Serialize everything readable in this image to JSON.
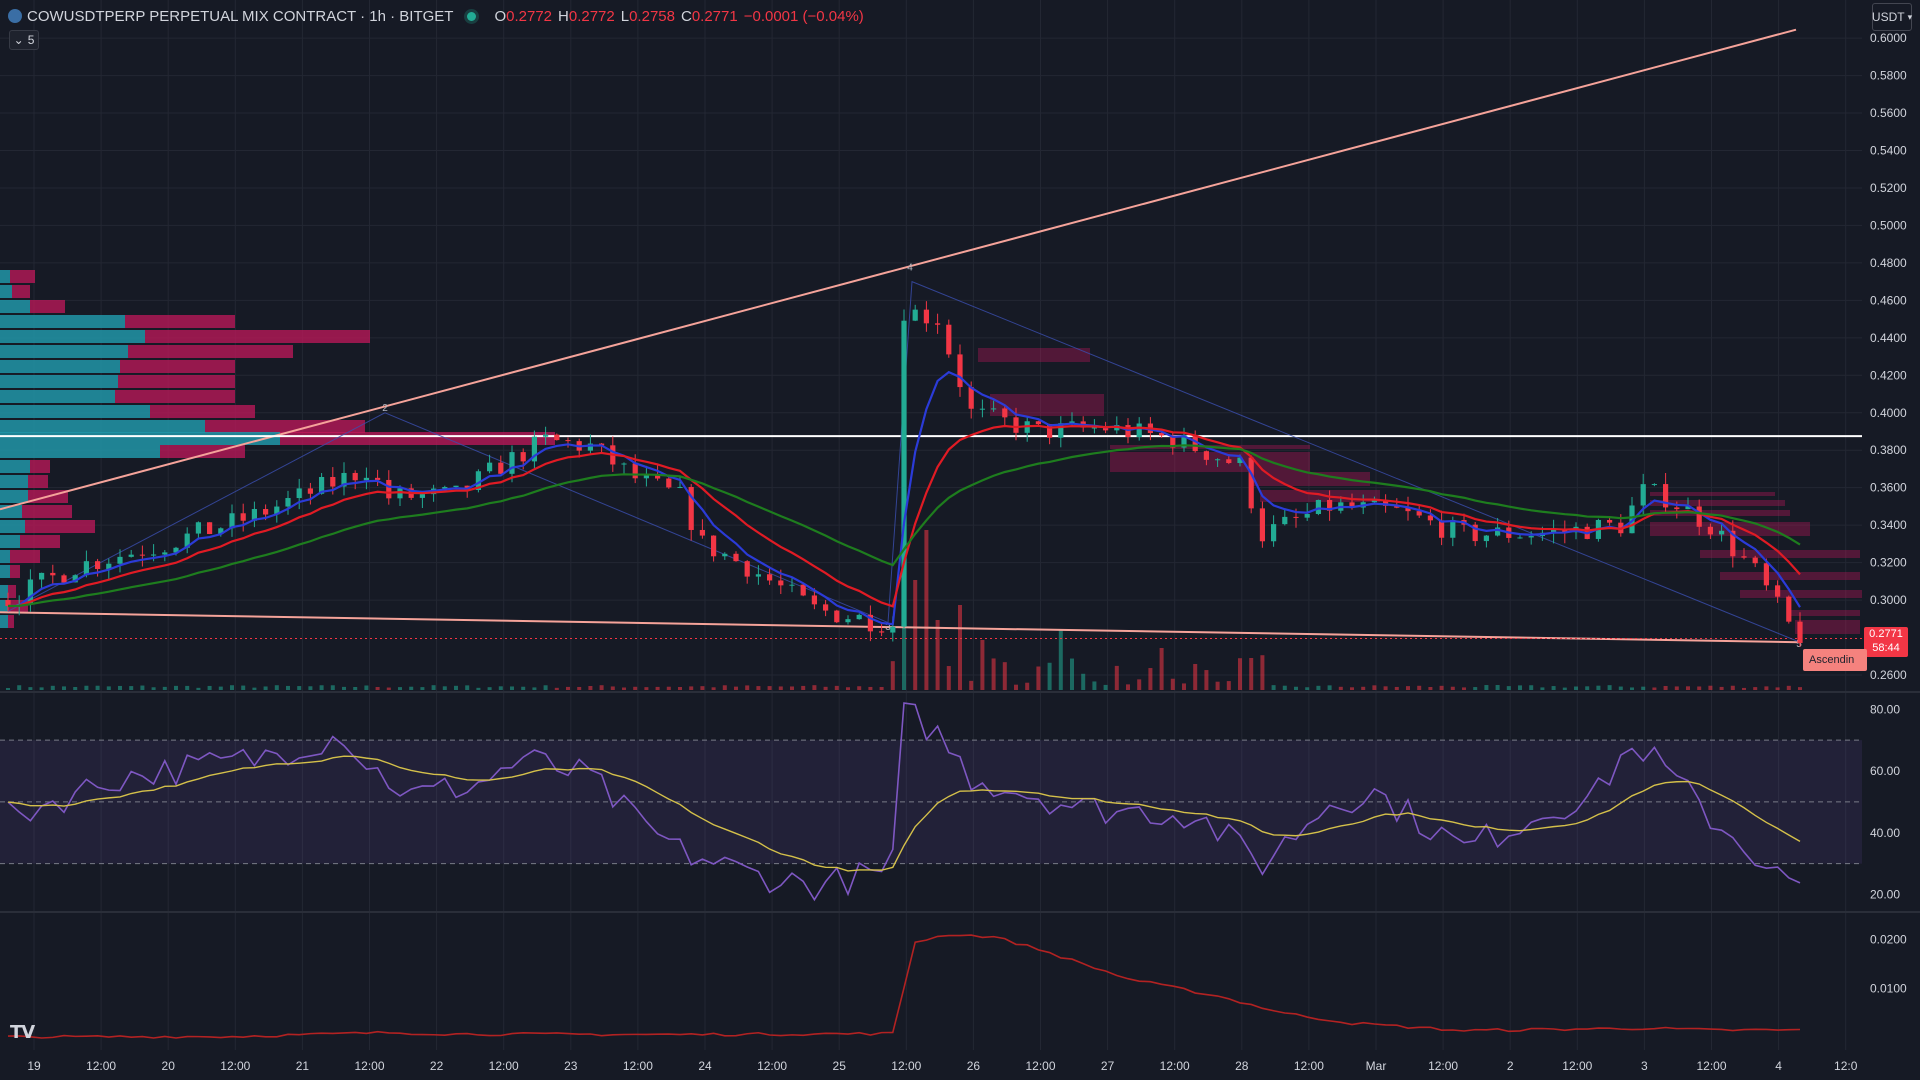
{
  "header": {
    "symbol": "COWUSDTPERP PERPETUAL MIX CONTRACT · 1h · BITGET",
    "o_label": "O",
    "o_value": "0.2772",
    "h_label": "H",
    "h_value": "0.2772",
    "l_label": "L",
    "l_value": "0.2758",
    "c_label": "C",
    "c_value": "0.2771",
    "change": "−0.0001 (−0.04%)",
    "indicators_count": "5",
    "currency": "USDT",
    "logo": "TV"
  },
  "last_price": {
    "price": "0.2771",
    "countdown": "58:44"
  },
  "pattern_label": "Ascendin",
  "colors": {
    "background": "#161a25",
    "up": "#22ab94",
    "down": "#f23645",
    "ema_fast": "#2b3bd8",
    "ema_mid": "#e01b24",
    "ema_slow": "#1e7d1e",
    "trendline": "#f5a39a",
    "rsi": "#7e57c2",
    "rsi_ma": "#d4c04a",
    "vol_indicator": "#b22222"
  },
  "chart_data": {
    "type": "candlestick",
    "symbol": "COWUSDTPERP",
    "interval": "1h",
    "x_ticks": [
      "19",
      "12:00",
      "20",
      "12:00",
      "21",
      "12:00",
      "22",
      "12:00",
      "23",
      "12:00",
      "24",
      "12:00",
      "25",
      "12:00",
      "26",
      "12:00",
      "27",
      "12:00",
      "28",
      "12:00",
      "Mar",
      "12:00",
      "2",
      "12:00",
      "3",
      "12:00",
      "4",
      "12:0"
    ],
    "price_axis": {
      "ticks": [
        "0.6000",
        "0.5800",
        "0.5600",
        "0.5400",
        "0.5200",
        "0.5000",
        "0.4800",
        "0.4600",
        "0.4400",
        "0.4200",
        "0.4000",
        "0.3800",
        "0.3600",
        "0.3400",
        "0.3200",
        "0.3000",
        "0.2600"
      ],
      "range": [
        0.252,
        0.615
      ]
    },
    "rsi_axis": {
      "ticks": [
        "80.00",
        "60.00",
        "40.00",
        "20.00"
      ],
      "range": [
        15,
        83
      ],
      "bands": [
        70,
        50,
        30
      ]
    },
    "vol_axis": {
      "ticks": [
        "0.0200",
        "0.0100"
      ]
    },
    "price_path": [
      [
        0,
        0.3
      ],
      [
        6,
        0.318
      ],
      [
        14,
        0.33
      ],
      [
        22,
        0.345
      ],
      [
        28,
        0.36
      ],
      [
        32,
        0.37
      ],
      [
        34,
        0.355
      ],
      [
        40,
        0.356
      ],
      [
        44,
        0.372
      ],
      [
        48,
        0.385
      ],
      [
        52,
        0.382
      ],
      [
        56,
        0.365
      ],
      [
        60,
        0.355
      ],
      [
        62,
        0.33
      ],
      [
        66,
        0.318
      ],
      [
        72,
        0.295
      ],
      [
        79,
        0.287
      ],
      [
        80,
        0.455
      ],
      [
        83,
        0.45
      ],
      [
        86,
        0.4
      ],
      [
        92,
        0.39
      ],
      [
        98,
        0.392
      ],
      [
        104,
        0.386
      ],
      [
        110,
        0.372
      ],
      [
        112,
        0.335
      ],
      [
        118,
        0.35
      ],
      [
        124,
        0.347
      ],
      [
        130,
        0.335
      ],
      [
        138,
        0.336
      ],
      [
        144,
        0.34
      ],
      [
        146,
        0.358
      ],
      [
        148,
        0.355
      ],
      [
        152,
        0.34
      ],
      [
        156,
        0.315
      ],
      [
        158,
        0.296
      ],
      [
        160,
        0.2771
      ]
    ],
    "rsi_path": [
      [
        0,
        45
      ],
      [
        10,
        58
      ],
      [
        22,
        64
      ],
      [
        30,
        72
      ],
      [
        32,
        62
      ],
      [
        36,
        52
      ],
      [
        42,
        56
      ],
      [
        46,
        64
      ],
      [
        52,
        58
      ],
      [
        56,
        44
      ],
      [
        60,
        34
      ],
      [
        66,
        27
      ],
      [
        72,
        23
      ],
      [
        78,
        27
      ],
      [
        79,
        31
      ],
      [
        80,
        80
      ],
      [
        83,
        72
      ],
      [
        86,
        58
      ],
      [
        96,
        48
      ],
      [
        106,
        46
      ],
      [
        112,
        30
      ],
      [
        118,
        50
      ],
      [
        122,
        53
      ],
      [
        130,
        35
      ],
      [
        138,
        48
      ],
      [
        142,
        53
      ],
      [
        144,
        65
      ],
      [
        146,
        67
      ],
      [
        148,
        60
      ],
      [
        152,
        45
      ],
      [
        156,
        33
      ],
      [
        158,
        26
      ],
      [
        160,
        22
      ]
    ],
    "vol_indicator_path": [
      [
        0,
        0.0002
      ],
      [
        20,
        0.0003
      ],
      [
        34,
        0.0011
      ],
      [
        40,
        0.0008
      ],
      [
        60,
        0.0007
      ],
      [
        79,
        0.0009
      ],
      [
        81,
        0.0195
      ],
      [
        84,
        0.021
      ],
      [
        88,
        0.0205
      ],
      [
        92,
        0.018
      ],
      [
        100,
        0.012
      ],
      [
        108,
        0.0085
      ],
      [
        114,
        0.005
      ],
      [
        120,
        0.003
      ],
      [
        130,
        0.0015
      ],
      [
        146,
        0.002
      ],
      [
        152,
        0.0016
      ],
      [
        160,
        0.0016
      ]
    ],
    "annotations": [
      "2",
      "4",
      "3",
      "5"
    ]
  }
}
